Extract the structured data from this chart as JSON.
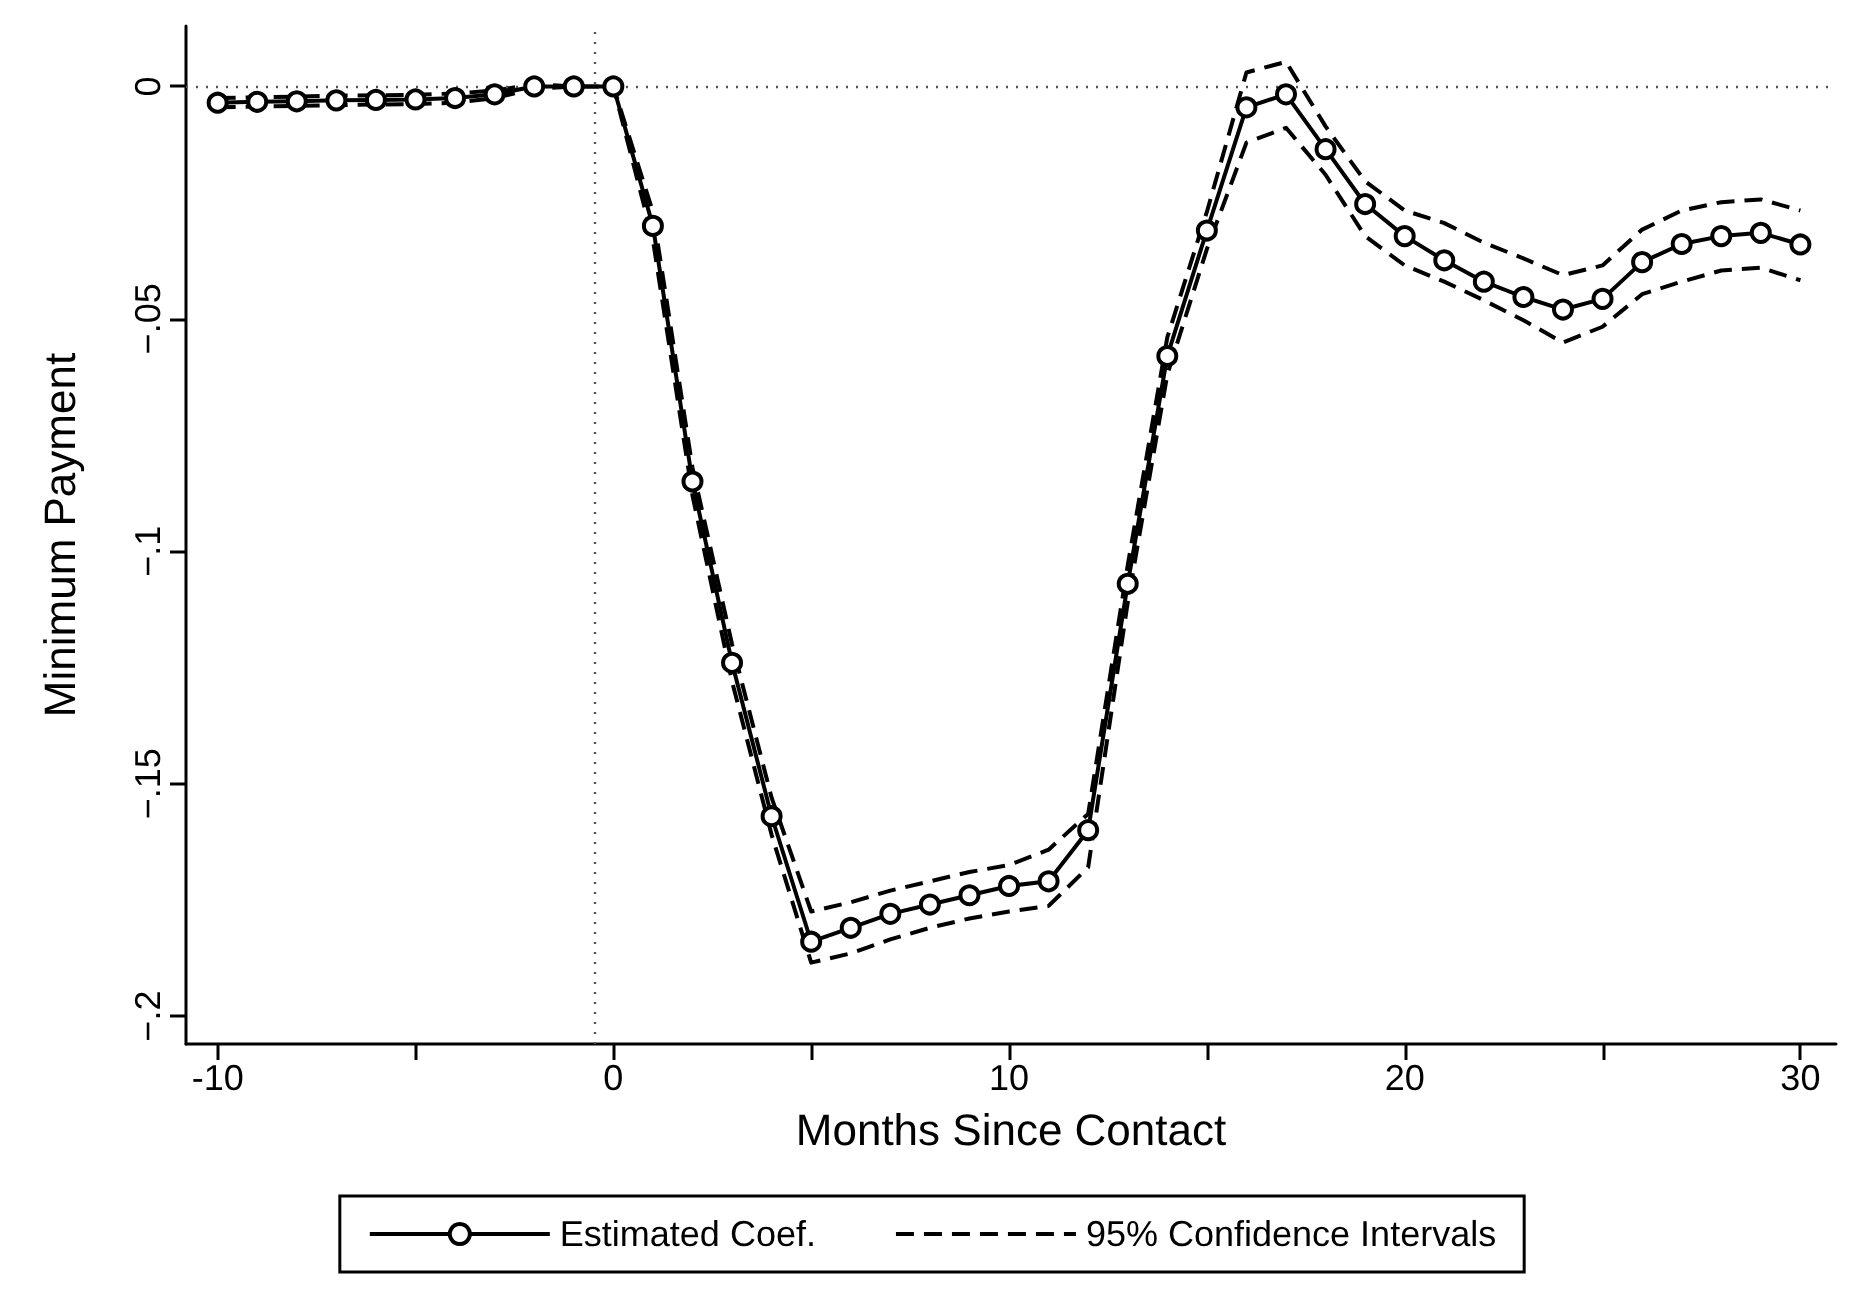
{
  "chart_data": {
    "type": "line",
    "xlabel": "Months Since Contact",
    "ylabel": "Minimum Payment",
    "x": [
      -10,
      -9,
      -8,
      -7,
      -6,
      -5,
      -4,
      -3,
      -2,
      -1,
      0,
      1,
      2,
      3,
      4,
      5,
      6,
      7,
      8,
      9,
      10,
      11,
      12,
      13,
      14,
      15,
      16,
      17,
      18,
      19,
      20,
      21,
      22,
      23,
      24,
      25,
      26,
      27,
      28,
      29,
      30
    ],
    "series": [
      {
        "name": "Estimated Coef.",
        "color": "#000000",
        "marker": "circle",
        "line_style": "solid",
        "values": [
          -0.0035,
          -0.0033,
          -0.0032,
          -0.003,
          -0.0029,
          -0.0028,
          -0.0025,
          -0.0017,
          0,
          0,
          0,
          -0.03,
          -0.085,
          -0.124,
          -0.157,
          -0.184,
          -0.181,
          -0.178,
          -0.176,
          -0.174,
          -0.172,
          -0.171,
          -0.16,
          -0.107,
          -0.058,
          -0.031,
          -0.0045,
          -0.0017,
          -0.0135,
          -0.0253,
          -0.0322,
          -0.0374,
          -0.042,
          -0.0453,
          -0.048,
          -0.0457,
          -0.0378,
          -0.0339,
          -0.0322,
          -0.0315,
          -0.034
        ]
      },
      {
        "name": "95% Confidence Intervals",
        "color": "#000000",
        "marker": "none",
        "line_style": "dashed",
        "x": [
          -10,
          -9,
          -8,
          -7,
          -6,
          -5,
          -4,
          -3,
          -2,
          -1,
          0,
          1,
          2,
          3,
          4,
          5,
          6,
          7,
          8,
          9,
          10,
          11,
          12,
          13,
          14,
          15,
          16,
          17,
          18,
          19,
          20,
          21,
          22,
          23,
          24,
          25,
          26,
          27,
          28,
          29,
          30,
          null,
          -10,
          -9,
          -8,
          -7,
          -6,
          -5,
          -4,
          -3,
          -2,
          -1,
          0,
          1,
          2,
          3,
          4,
          5,
          6,
          7,
          8,
          9,
          10,
          11,
          12,
          13,
          14,
          15,
          16,
          17,
          18,
          19,
          20,
          21,
          22,
          23,
          24,
          25,
          26,
          27,
          28,
          29,
          30
        ],
        "values": [
          -0.0025,
          -0.0023,
          -0.0022,
          -0.002,
          -0.0019,
          -0.0018,
          -0.0015,
          -0.0009,
          0.0005,
          0,
          0,
          -0.027,
          -0.082,
          -0.12,
          -0.153,
          -0.1775,
          -0.1755,
          -0.173,
          -0.171,
          -0.169,
          -0.1675,
          -0.1642,
          -0.1565,
          -0.103,
          -0.054,
          -0.027,
          0.003,
          0.0053,
          -0.0086,
          -0.0204,
          -0.0267,
          -0.0294,
          -0.0336,
          -0.037,
          -0.0406,
          -0.0385,
          -0.0308,
          -0.0267,
          -0.0249,
          -0.0243,
          -0.0267,
          null,
          -0.0045,
          -0.0043,
          -0.0042,
          -0.004,
          -0.0039,
          -0.0038,
          -0.0035,
          -0.0025,
          -0.0005,
          0,
          0,
          -0.033,
          -0.088,
          -0.128,
          -0.161,
          -0.1885,
          -0.1865,
          -0.1835,
          -0.181,
          -0.179,
          -0.1775,
          -0.1763,
          -0.168,
          -0.111,
          -0.062,
          -0.035,
          -0.0121,
          -0.0089,
          -0.019,
          -0.0322,
          -0.0385,
          -0.042,
          -0.046,
          -0.0503,
          -0.0551,
          -0.0517,
          -0.0447,
          -0.042,
          -0.0396,
          -0.039,
          -0.0417
        ]
      }
    ],
    "xlim": [
      -10.8,
      30.9
    ],
    "xticks": [
      -10,
      {
        "value": -5,
        "label": null
      },
      0,
      {
        "value": 5,
        "label": null
      },
      10,
      {
        "value": 15,
        "label": null
      },
      20,
      {
        "value": 25,
        "label": null
      },
      30
    ],
    "ylim": [
      -0.206,
      0.013
    ],
    "yticks": [
      {
        "value": 0,
        "label": "0"
      },
      {
        "value": -0.05,
        "label": "−.05"
      },
      {
        "value": -0.1,
        "label": "−.1"
      },
      {
        "value": -0.15,
        "label": "−.15"
      },
      {
        "value": -0.2,
        "label": "−.2"
      }
    ],
    "ref_lines": [
      {
        "axis": "x",
        "value": -0.5,
        "line_style": "dotted",
        "color": "#555555"
      },
      {
        "axis": "y",
        "value": 0,
        "line_style": "dotted",
        "color": "#555555"
      }
    ],
    "legend": "bottom",
    "grid": false
  }
}
